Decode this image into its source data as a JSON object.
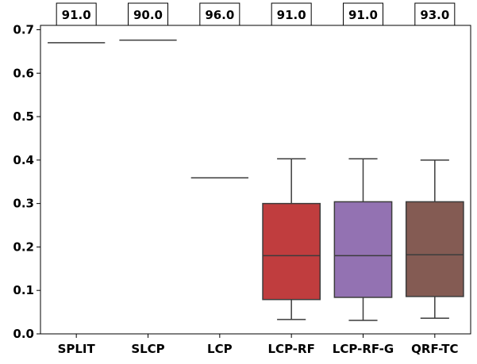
{
  "chart_data": {
    "type": "box",
    "categories": [
      "SPLIT",
      "SLCP",
      "LCP",
      "LCP-RF",
      "LCP-RF-G",
      "QRF-TC"
    ],
    "coverage_labels": [
      "91.0",
      "90.0",
      "96.0",
      "91.0",
      "91.0",
      "93.0"
    ],
    "boxes": [
      {
        "min": 0.67,
        "q1": 0.67,
        "median": 0.67,
        "q3": 0.67,
        "max": 0.67,
        "color": "#1f77b4"
      },
      {
        "min": 0.676,
        "q1": 0.676,
        "median": 0.676,
        "q3": 0.676,
        "max": 0.676,
        "color": "#ff7f0e"
      },
      {
        "min": 0.359,
        "q1": 0.359,
        "median": 0.359,
        "q3": 0.359,
        "max": 0.359,
        "color": "#2ca02c"
      },
      {
        "min": 0.033,
        "q1": 0.079,
        "median": 0.18,
        "q3": 0.3,
        "max": 0.403,
        "color": "#c03d3e"
      },
      {
        "min": 0.031,
        "q1": 0.084,
        "median": 0.18,
        "q3": 0.304,
        "max": 0.403,
        "color": "#9372b2"
      },
      {
        "min": 0.036,
        "q1": 0.086,
        "median": 0.182,
        "q3": 0.304,
        "max": 0.4,
        "color": "#845b53"
      }
    ],
    "yticks": [
      "0.0",
      "0.1",
      "0.2",
      "0.3",
      "0.4",
      "0.5",
      "0.6",
      "0.7"
    ],
    "ylim": [
      0.0,
      0.71
    ],
    "grid": false,
    "legend": "none"
  }
}
